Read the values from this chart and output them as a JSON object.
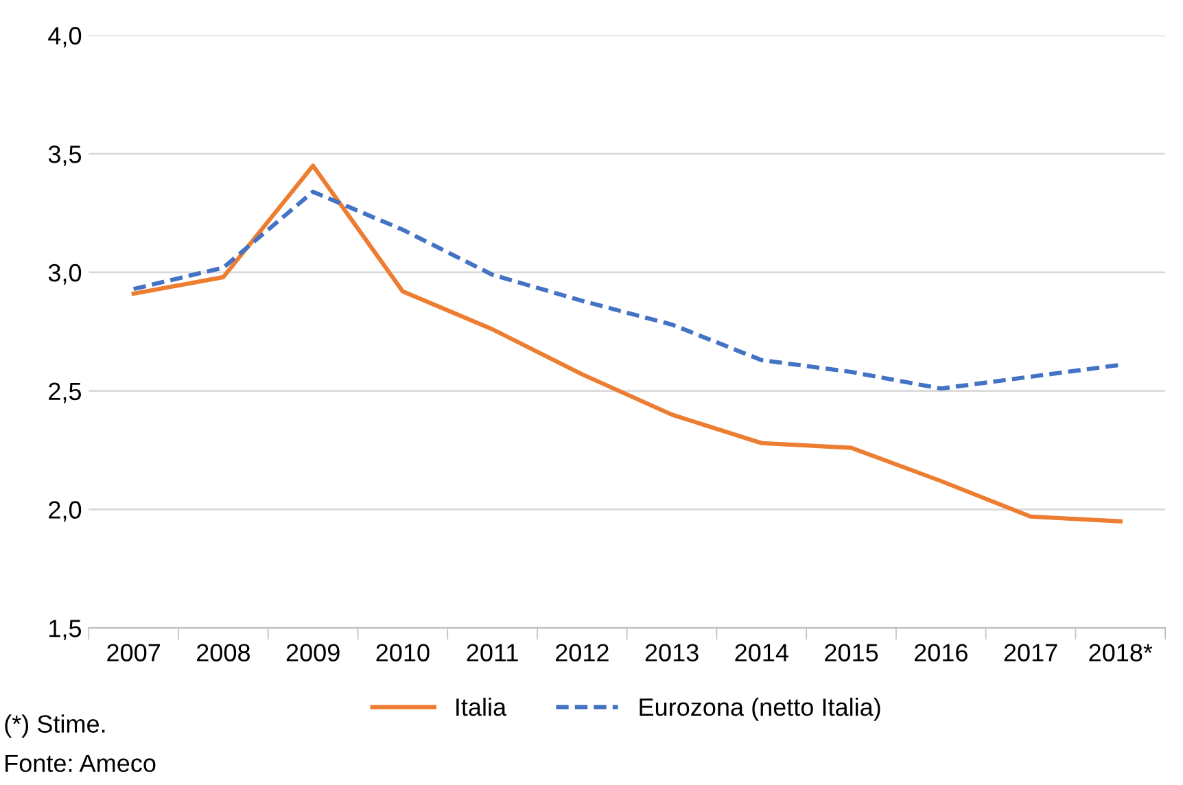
{
  "chart_data": {
    "type": "line",
    "categories": [
      "2007",
      "2008",
      "2009",
      "2010",
      "2011",
      "2012",
      "2013",
      "2014",
      "2015",
      "2016",
      "2017",
      "2018*"
    ],
    "series": [
      {
        "name": "Italia",
        "color": "#ed7d31",
        "line_style": "solid",
        "values": [
          2.91,
          2.98,
          3.45,
          2.92,
          2.76,
          2.57,
          2.4,
          2.28,
          2.26,
          2.12,
          1.97,
          1.95
        ]
      },
      {
        "name": "Eurozona (netto Italia)",
        "color": "#4472c4",
        "line_style": "dashed",
        "values": [
          2.93,
          3.02,
          3.34,
          3.18,
          2.99,
          2.88,
          2.78,
          2.63,
          2.58,
          2.51,
          2.56,
          2.61
        ]
      }
    ],
    "ylim": [
      1.5,
      4.0
    ],
    "yticks": [
      {
        "value": 1.5,
        "label": "1,5"
      },
      {
        "value": 2.0,
        "label": "2,0"
      },
      {
        "value": 2.5,
        "label": "2,5"
      },
      {
        "value": 3.0,
        "label": "3,0"
      },
      {
        "value": 3.5,
        "label": "3,5"
      },
      {
        "value": 4.0,
        "label": "4,0"
      }
    ],
    "grid": "y",
    "legend": "bottom",
    "marker": "none",
    "annotations": [
      "(*) Stime.",
      "Fonte: Ameco"
    ]
  }
}
